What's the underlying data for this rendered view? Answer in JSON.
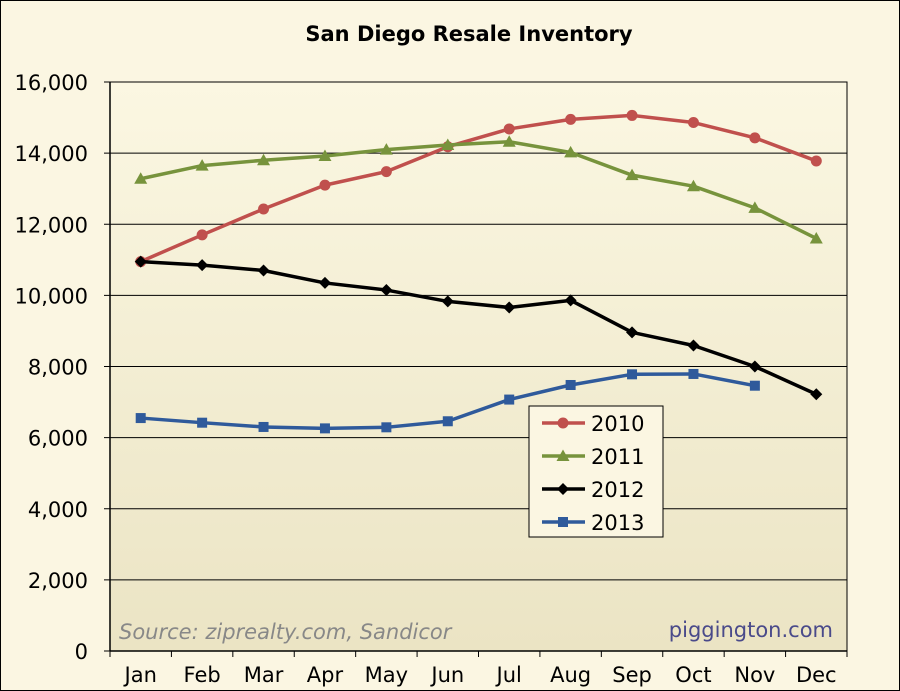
{
  "chart_data": {
    "type": "line",
    "title": "San Diego Resale Inventory",
    "xlabel": "",
    "ylabel": "",
    "categories": [
      "Jan",
      "Feb",
      "Mar",
      "Apr",
      "May",
      "Jun",
      "Jul",
      "Aug",
      "Sep",
      "Oct",
      "Nov",
      "Dec"
    ],
    "ylim": [
      0,
      16000
    ],
    "yticks": [
      0,
      2000,
      4000,
      6000,
      8000,
      10000,
      12000,
      14000,
      16000
    ],
    "ytick_labels": [
      "0",
      "2,000",
      "4,000",
      "6,000",
      "8,000",
      "10,000",
      "12,000",
      "14,000",
      "16,000"
    ],
    "grid": "horizontal",
    "legend_position": "center-right",
    "series": [
      {
        "name": "2010",
        "color": "#c0504d",
        "marker": "circle",
        "values": [
          10950,
          11700,
          12430,
          13100,
          13480,
          14180,
          14680,
          14950,
          15060,
          14860,
          14430,
          13780
        ]
      },
      {
        "name": "2011",
        "color": "#77933c",
        "marker": "triangle",
        "values": [
          13280,
          13650,
          13800,
          13920,
          14100,
          14230,
          14320,
          14020,
          13380,
          13070,
          12460,
          11600
        ]
      },
      {
        "name": "2012",
        "color": "#000000",
        "marker": "diamond",
        "values": [
          10950,
          10850,
          10700,
          10350,
          10150,
          9830,
          9660,
          9860,
          8960,
          8590,
          8000,
          7220
        ]
      },
      {
        "name": "2013",
        "color": "#2f5a9b",
        "marker": "square",
        "values": [
          6550,
          6420,
          6300,
          6260,
          6290,
          6460,
          7070,
          7480,
          7780,
          7790,
          7460,
          null
        ]
      }
    ],
    "source_note": "Source: ziprealty.com, Sandicor",
    "credit": "piggington.com",
    "plot_background": "#f5efd0",
    "page_background": "#fbf6e2"
  }
}
